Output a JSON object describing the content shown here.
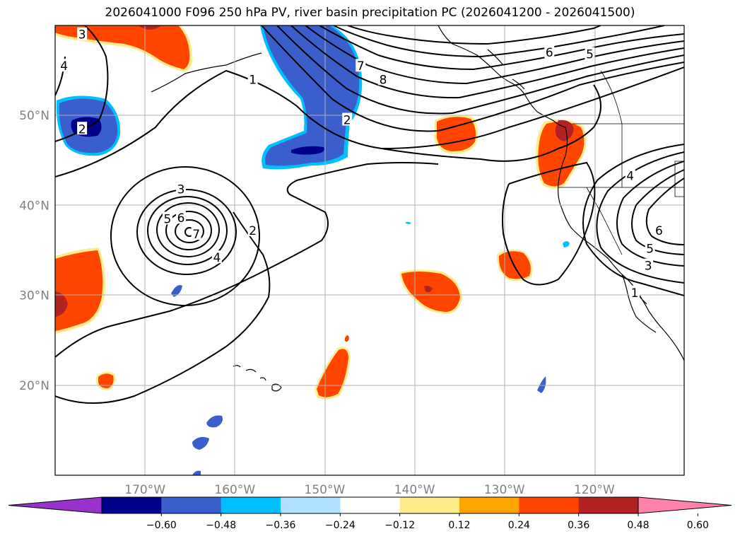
{
  "title": "2026041000 F096 250 hPa PV, river basin precipitation PC (2026041200 - 2026041500)",
  "axes": {
    "lon_ticks": [
      {
        "lon": -170,
        "label": "170°W"
      },
      {
        "lon": -160,
        "label": "160°W"
      },
      {
        "lon": -150,
        "label": "150°W"
      },
      {
        "lon": -140,
        "label": "140°W"
      },
      {
        "lon": -130,
        "label": "130°W"
      },
      {
        "lon": -120,
        "label": "120°W"
      }
    ],
    "lat_ticks": [
      {
        "lat": 50,
        "label": "50°N"
      },
      {
        "lat": 40,
        "label": "40°N"
      },
      {
        "lat": 30,
        "label": "30°N"
      },
      {
        "lat": 20,
        "label": "20°N"
      }
    ],
    "lon_range": [
      -180,
      -110
    ],
    "lat_range": [
      10,
      60
    ]
  },
  "colorbar": {
    "colors": [
      "#9932cc",
      "#00008b",
      "#3a5fcd",
      "#00bfff",
      "#b0e2ff",
      "#ffffff",
      "#ffec8b",
      "#ffa500",
      "#ff4500",
      "#b22222",
      "#ff82ab"
    ],
    "tick_labels": [
      "−0.60",
      "−0.48",
      "−0.36",
      "−0.24",
      "−0.12",
      "0.12",
      "0.24",
      "0.36",
      "0.48",
      "0.60"
    ]
  },
  "contour_labels": [
    {
      "text": "3",
      "lon": -177,
      "lat": 59
    },
    {
      "text": "4",
      "lon": -179,
      "lat": 55.5
    },
    {
      "text": "2",
      "lon": -177,
      "lat": 48.5
    },
    {
      "text": "1",
      "lon": -158,
      "lat": 54
    },
    {
      "text": "7",
      "lon": -146,
      "lat": 55.5
    },
    {
      "text": "8",
      "lon": -143.5,
      "lat": 54
    },
    {
      "text": "2",
      "lon": -147.5,
      "lat": 49.5
    },
    {
      "text": "6",
      "lon": -125,
      "lat": 57
    },
    {
      "text": "5",
      "lon": -120.5,
      "lat": 56.8
    },
    {
      "text": "3",
      "lon": -166,
      "lat": 41.8
    },
    {
      "text": "5",
      "lon": -167.5,
      "lat": 38.5
    },
    {
      "text": "6",
      "lon": -166,
      "lat": 38.6
    },
    {
      "text": "7",
      "lon": -164.3,
      "lat": 36.8
    },
    {
      "text": "2",
      "lon": -158,
      "lat": 37.2
    },
    {
      "text": "4",
      "lon": -162,
      "lat": 34.2
    },
    {
      "text": "4",
      "lon": -116,
      "lat": 43.3
    },
    {
      "text": "6",
      "lon": -112.8,
      "lat": 37.2
    },
    {
      "text": "5",
      "lon": -113.8,
      "lat": 35.2
    },
    {
      "text": "3",
      "lon": -114,
      "lat": 33.3
    },
    {
      "text": "1",
      "lon": -115.5,
      "lat": 30.3
    }
  ]
}
